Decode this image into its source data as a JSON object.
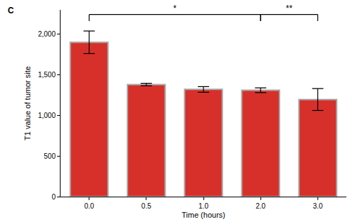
{
  "chart_data": {
    "type": "bar",
    "panel_label": "C",
    "x_label": "Time (hours)",
    "y_label": "T1 value of tumor site",
    "categories": [
      "0.0",
      "0.5",
      "1.0",
      "2.0",
      "3.0"
    ],
    "values": [
      1900,
      1380,
      1320,
      1310,
      1195
    ],
    "errors": [
      140,
      15,
      35,
      30,
      135
    ],
    "color": "#d7302a",
    "ylim": [
      0,
      2300
    ],
    "yticks": [
      0,
      500,
      {
        "value": 1000,
        "label": "1,000"
      },
      {
        "value": 1500,
        "label": "1,500"
      },
      {
        "value": 2000,
        "label": "2,000"
      }
    ],
    "grid": false,
    "significance": [
      {
        "from": "0.0",
        "to": "2.0",
        "label": "*"
      },
      {
        "from": "2.0",
        "to": "3.0",
        "label": "**"
      }
    ]
  }
}
